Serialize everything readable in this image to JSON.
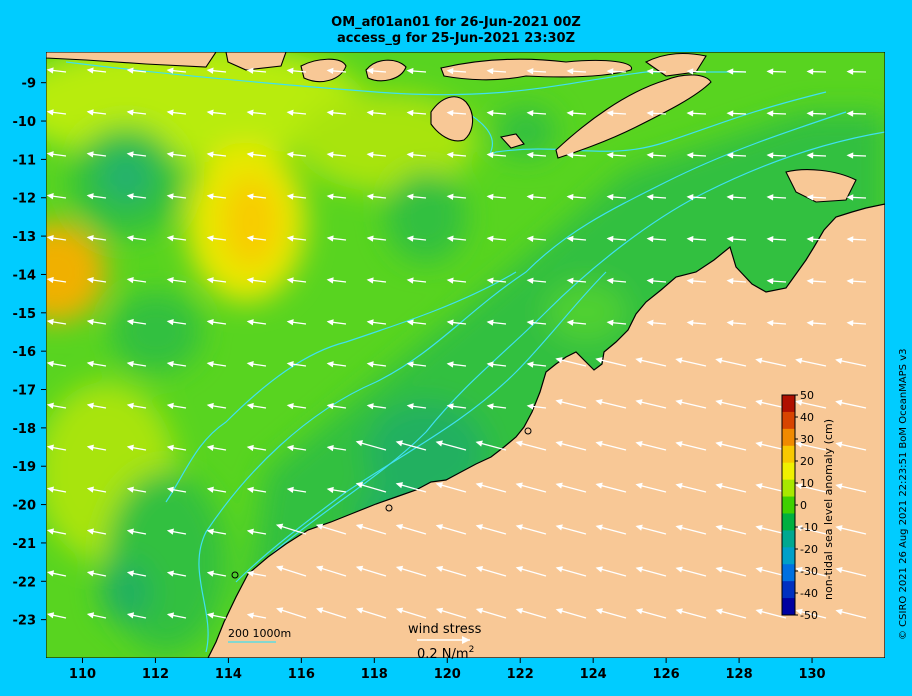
{
  "title": {
    "line1": "OM_af01an01 for 26-Jun-2021 00Z",
    "line2": "access_g for 25-Jun-2021 23:30Z"
  },
  "axes": {
    "lon_min": 109,
    "lon_max": 132,
    "lat_min": -24,
    "lat_max": -8.2,
    "lon_ticks": [
      "110",
      "112",
      "114",
      "116",
      "118",
      "120",
      "122",
      "124",
      "126",
      "128",
      "130"
    ],
    "lat_ticks": [
      "-9",
      "-10",
      "-11",
      "-12",
      "-13",
      "-14",
      "-15",
      "-16",
      "-17",
      "-18",
      "-19",
      "-20",
      "-21",
      "-22",
      "-23"
    ]
  },
  "colorbar": {
    "label": "non-tidal sea level anomaly (cm)",
    "ticks": [
      "50",
      "40",
      "30",
      "20",
      "10",
      "0",
      "-10",
      "-20",
      "-30",
      "-40",
      "-50"
    ],
    "colors": [
      "#b01000",
      "#d84400",
      "#f08a00",
      "#f8c800",
      "#f0f000",
      "#a8e800",
      "#40d000",
      "#00b040",
      "#00a890",
      "#00a0c8",
      "#0070e0",
      "#0030c0",
      "#0000a0"
    ]
  },
  "annotations": {
    "depth_legend": "200  1000m",
    "wind_label": "wind stress",
    "wind_scale": "0.2 N/m",
    "wind_scale_sup": "2"
  },
  "credit": "© CSIRO 2021  26 Aug 2021 22:23:51 BoM OceanMAPS v3",
  "colors": {
    "land": "#f8c896",
    "ocean_base": "#60d820",
    "background": "#00ccff",
    "contour": "#40e0f0"
  }
}
